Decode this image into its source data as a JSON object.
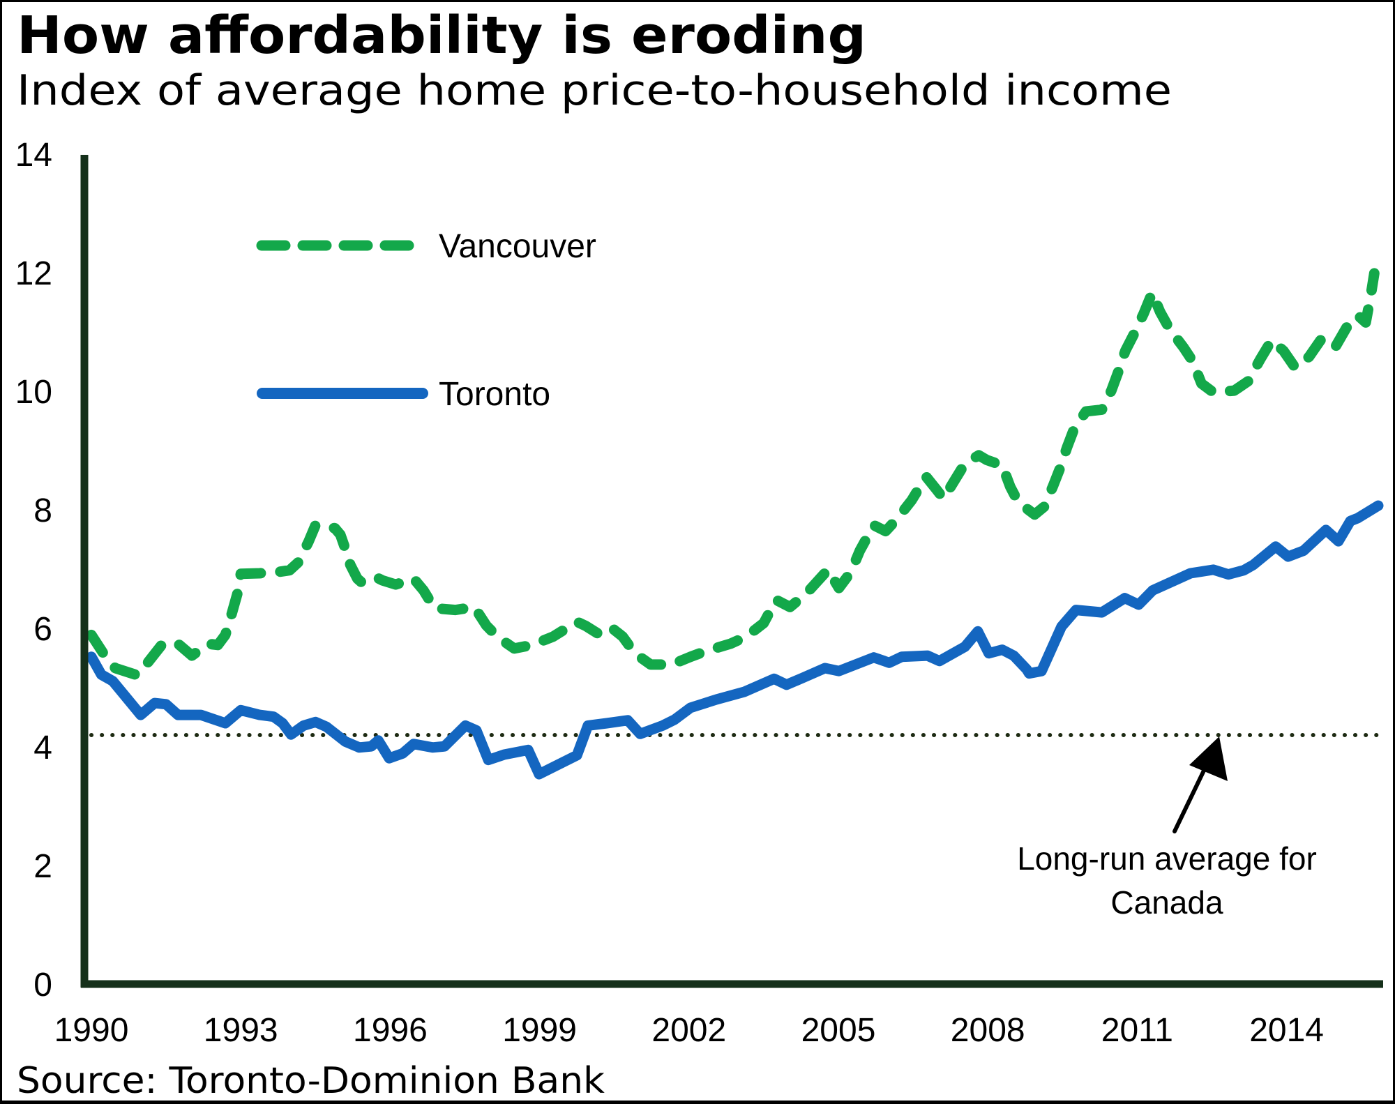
{
  "header": {
    "title": "How affordability is eroding",
    "subtitle": "Index of average home price-to-household income"
  },
  "footer": {
    "source": "Source: Toronto-Dominion Bank"
  },
  "colors": {
    "vancouver": "#13a84a",
    "toronto": "#1466c0",
    "axis": "#15301a",
    "average": "#1d2a12"
  },
  "chart_data": {
    "type": "line",
    "title": "How affordability is eroding",
    "subtitle": "Index of average home price-to-household income",
    "xlabel": "",
    "ylabel": "",
    "xlim": [
      1990,
      2015.95
    ],
    "ylim": [
      0,
      14
    ],
    "grid": false,
    "x_ticks": [
      1990,
      1993,
      1996,
      1999,
      2002,
      2005,
      2008,
      2011,
      2014
    ],
    "x_tick_labels": [
      "1990",
      "1993",
      "1996",
      "1999",
      "2002",
      "2005",
      "2008",
      "2011",
      "2014"
    ],
    "y_ticks": [
      0,
      2,
      4,
      6,
      8,
      10,
      12,
      14
    ],
    "y_tick_labels": [
      "0",
      "2",
      "4",
      "6",
      "8",
      "10",
      "12",
      "14"
    ],
    "legend": {
      "placement": "top-left",
      "entries": [
        {
          "label": "Vancouver",
          "style": "dashed"
        },
        {
          "label": "Toronto",
          "style": "solid"
        }
      ]
    },
    "reference_line": {
      "label": "Long-run average for Canada",
      "label_lines": [
        "Long-run average for",
        "Canada"
      ],
      "value": 4.2,
      "style": "dotted",
      "arrow_points_to_year": 2012.5
    },
    "series": [
      {
        "name": "Vancouver",
        "style": "dashed",
        "x": [
          1990.0,
          1990.24,
          1990.48,
          1990.92,
          1991.13,
          1991.43,
          1991.74,
          1992.02,
          1992.34,
          1992.54,
          1992.69,
          1992.82,
          1992.93,
          1993.0,
          1993.38,
          1993.74,
          1993.98,
          1994.15,
          1994.36,
          1994.5,
          1994.89,
          1995.0,
          1995.1,
          1995.2,
          1995.34,
          1995.42,
          1995.7,
          1995.84,
          1996.11,
          1996.47,
          1996.67,
          1996.89,
          1997.31,
          1997.69,
          1997.93,
          1998.15,
          1998.49,
          1998.85,
          1999.27,
          1999.75,
          1999.93,
          2000.25,
          2000.49,
          2000.67,
          2000.91,
          2001.23,
          2001.65,
          2002.03,
          2002.35,
          2002.83,
          2003.15,
          2003.5,
          2003.75,
          2004.03,
          2004.37,
          2004.79,
          2005.01,
          2005.25,
          2005.43,
          2005.71,
          2005.95,
          2006.19,
          2006.47,
          2006.76,
          2006.97,
          2007.11,
          2007.35,
          2007.54,
          2007.82,
          2007.98,
          2008.29,
          2008.45,
          2008.61,
          2008.94,
          2009.13,
          2009.31,
          2009.45,
          2009.59,
          2009.73,
          2009.97,
          2010.29,
          2010.48,
          2010.62,
          2010.76,
          2010.95,
          2011.13,
          2011.3,
          2011.46,
          2011.65,
          2011.93,
          2012.11,
          2012.29,
          2012.53,
          2012.95,
          2013.23,
          2013.47,
          2013.7,
          2013.94,
          2014.17,
          2014.45,
          2014.68,
          2014.96,
          2015.2,
          2015.43,
          2015.59,
          2015.69,
          2015.76
        ],
        "values": [
          5.89,
          5.58,
          5.33,
          5.21,
          5.42,
          5.74,
          5.74,
          5.54,
          5.74,
          5.72,
          5.89,
          6.25,
          6.58,
          6.92,
          6.93,
          6.95,
          6.98,
          7.11,
          7.46,
          7.74,
          7.69,
          7.58,
          7.34,
          7.07,
          6.84,
          6.78,
          6.87,
          6.81,
          6.74,
          6.84,
          6.64,
          6.34,
          6.31,
          6.36,
          6.05,
          5.86,
          5.66,
          5.72,
          5.86,
          6.11,
          6.04,
          5.87,
          5.98,
          5.86,
          5.58,
          5.39,
          5.39,
          5.52,
          5.62,
          5.74,
          5.86,
          6.09,
          6.48,
          6.36,
          6.6,
          6.99,
          6.68,
          6.95,
          7.31,
          7.74,
          7.64,
          7.86,
          8.16,
          8.56,
          8.34,
          8.19,
          8.52,
          8.78,
          8.92,
          8.84,
          8.75,
          8.39,
          8.13,
          7.92,
          8.05,
          8.4,
          8.7,
          9.05,
          9.36,
          9.66,
          9.69,
          10.01,
          10.33,
          10.68,
          10.99,
          11.31,
          11.66,
          11.34,
          11.05,
          10.74,
          10.51,
          10.13,
          9.98,
          10.01,
          10.17,
          10.54,
          10.86,
          10.68,
          10.4,
          10.58,
          10.86,
          10.72,
          11.07,
          11.28,
          11.16,
          11.62,
          11.99
        ]
      },
      {
        "name": "Toronto",
        "style": "solid",
        "x": [
          1990.0,
          1990.2,
          1990.43,
          1990.99,
          1991.27,
          1991.5,
          1991.74,
          1992.2,
          1992.69,
          1993.0,
          1993.38,
          1993.66,
          1993.84,
          1994.01,
          1994.26,
          1994.5,
          1994.72,
          1995.1,
          1995.38,
          1995.62,
          1995.76,
          1995.98,
          1996.25,
          1996.47,
          1996.85,
          1997.09,
          1997.51,
          1997.73,
          1997.97,
          1998.29,
          1998.77,
          1998.99,
          1999.75,
          1999.97,
          2000.35,
          2000.77,
          2001.02,
          2001.47,
          2001.71,
          2002.03,
          2002.55,
          2003.11,
          2003.71,
          2003.96,
          2004.27,
          2004.73,
          2005.01,
          2005.71,
          2006.02,
          2006.27,
          2006.79,
          2007.03,
          2007.54,
          2007.8,
          2008.02,
          2008.29,
          2008.52,
          2008.78,
          2008.83,
          2009.08,
          2009.48,
          2009.77,
          2010.29,
          2010.75,
          2011.03,
          2011.31,
          2011.73,
          2012.07,
          2012.53,
          2012.83,
          2013.14,
          2013.33,
          2013.78,
          2014.03,
          2014.34,
          2014.79,
          2015.04,
          2015.28,
          2015.43,
          2015.84
        ],
        "values": [
          5.52,
          5.22,
          5.11,
          4.54,
          4.74,
          4.72,
          4.54,
          4.54,
          4.4,
          4.62,
          4.54,
          4.51,
          4.4,
          4.21,
          4.36,
          4.42,
          4.34,
          4.09,
          3.99,
          4.01,
          4.11,
          3.81,
          3.89,
          4.05,
          3.99,
          4.01,
          4.36,
          4.28,
          3.78,
          3.87,
          3.95,
          3.54,
          3.86,
          4.36,
          4.4,
          4.45,
          4.22,
          4.36,
          4.46,
          4.66,
          4.8,
          4.93,
          5.15,
          5.05,
          5.16,
          5.33,
          5.28,
          5.51,
          5.42,
          5.52,
          5.54,
          5.45,
          5.69,
          5.95,
          5.58,
          5.64,
          5.54,
          5.31,
          5.24,
          5.28,
          6.03,
          6.31,
          6.27,
          6.51,
          6.4,
          6.64,
          6.8,
          6.93,
          6.99,
          6.91,
          6.98,
          7.07,
          7.38,
          7.21,
          7.31,
          7.66,
          7.47,
          7.81,
          7.86,
          8.07
        ]
      }
    ]
  }
}
